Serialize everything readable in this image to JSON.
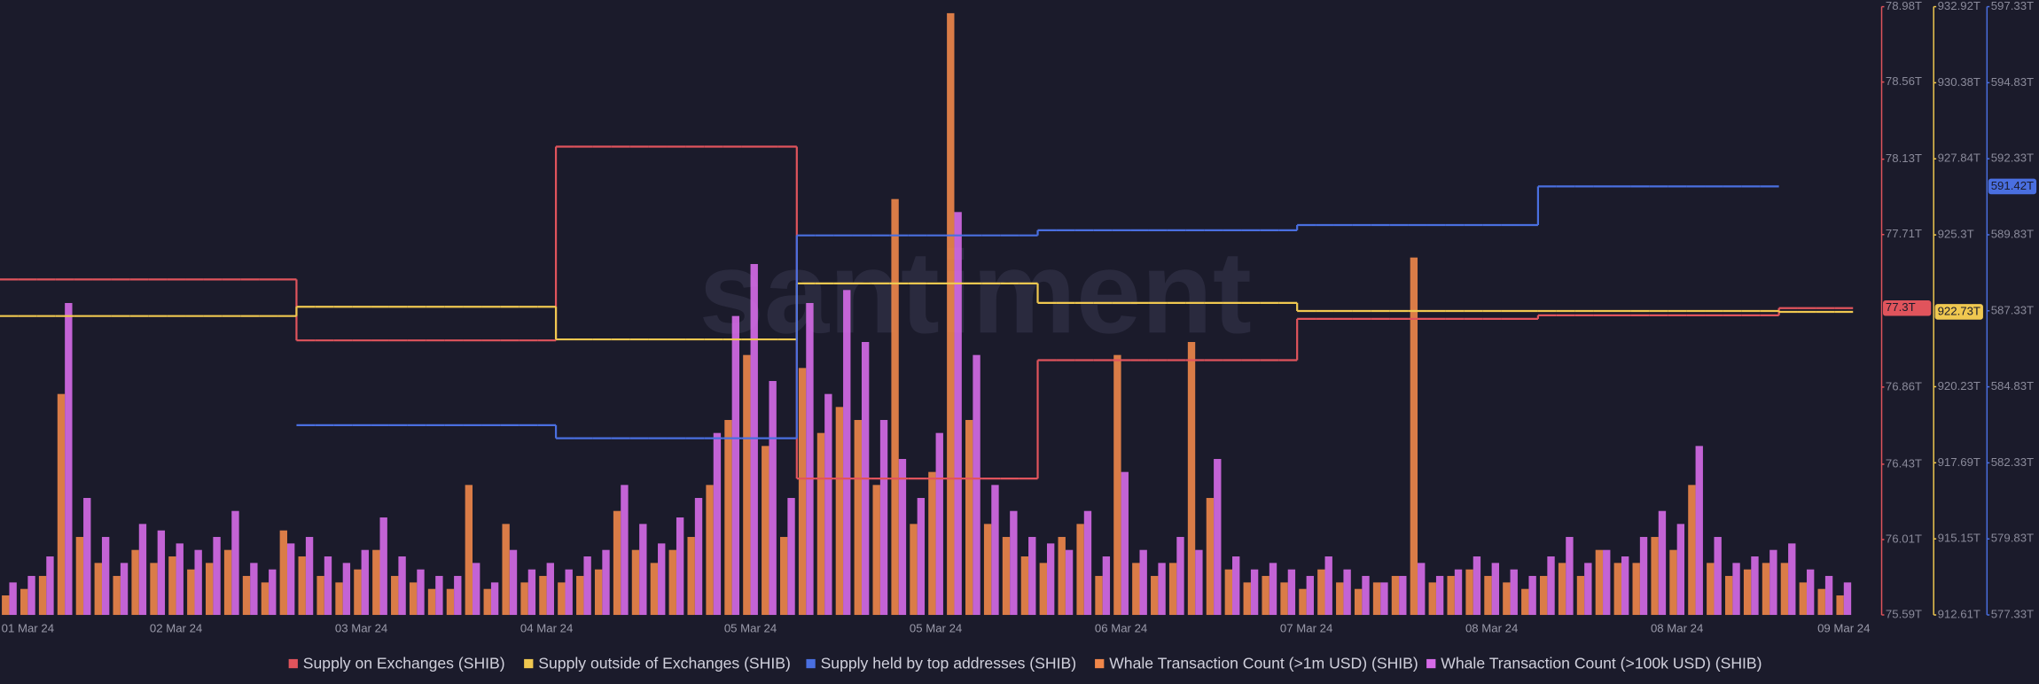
{
  "chart_data": {
    "type": "combo",
    "watermark": "santiment",
    "categories": [
      null,
      "01 Mar 24",
      null,
      null,
      null,
      null,
      null,
      null,
      null,
      "02 Mar 24",
      null,
      null,
      null,
      null,
      null,
      null,
      null,
      null,
      null,
      "03 Mar 24",
      null,
      null,
      null,
      null,
      null,
      null,
      null,
      null,
      null,
      "04 Mar 24",
      null,
      null,
      null,
      null,
      null,
      null,
      null,
      null,
      null,
      null,
      "05 Mar 24",
      null,
      null,
      null,
      null,
      null,
      null,
      null,
      null,
      null,
      "05 Mar 24",
      null,
      null,
      null,
      null,
      null,
      null,
      null,
      null,
      null,
      "06 Mar 24",
      null,
      null,
      null,
      null,
      null,
      null,
      null,
      null,
      null,
      "07 Mar 24",
      null,
      null,
      null,
      null,
      null,
      null,
      null,
      null,
      null,
      "08 Mar 24",
      null,
      null,
      null,
      null,
      null,
      null,
      null,
      null,
      null,
      "08 Mar 24",
      null,
      null,
      null,
      null,
      null,
      null,
      null,
      null,
      "09 Mar 24"
    ],
    "ylim": [
      75.59,
      78.98
    ],
    "yticks": [
      {
        "value": 78.98,
        "label": "78.98T"
      },
      {
        "value": 78.56,
        "label": "78.56T"
      },
      {
        "value": 78.13,
        "label": "78.13T"
      },
      {
        "value": 77.71,
        "label": "77.71T"
      },
      {
        "value": 76.86,
        "label": "76.86T"
      },
      {
        "value": 76.43,
        "label": "76.43T"
      },
      {
        "value": 76.01,
        "label": "76.01T"
      },
      {
        "value": 75.59,
        "label": "75.59T"
      }
    ],
    "y2lim": [
      912.61,
      932.92
    ],
    "y2ticks": [
      {
        "value": 932.92,
        "label": "932.92T"
      },
      {
        "value": 930.38,
        "label": "930.38T"
      },
      {
        "value": 927.84,
        "label": "927.84T"
      },
      {
        "value": 925.3,
        "label": "925.3T"
      },
      {
        "value": 920.23,
        "label": "920.23T"
      },
      {
        "value": 917.69,
        "label": "917.69T"
      },
      {
        "value": 915.15,
        "label": "915.15T"
      },
      {
        "value": 912.61,
        "label": "912.61T"
      }
    ],
    "y3lim": [
      577.33,
      597.33
    ],
    "y3ticks": [
      {
        "value": 597.33,
        "label": "597.33T"
      },
      {
        "value": 594.83,
        "label": "594.83T"
      },
      {
        "value": 592.33,
        "label": "592.33T"
      },
      {
        "value": 589.83,
        "label": "589.83T"
      },
      {
        "value": 587.33,
        "label": "587.33T"
      },
      {
        "value": 584.83,
        "label": "584.83T"
      },
      {
        "value": 582.33,
        "label": "582.33T"
      },
      {
        "value": 579.83,
        "label": "579.83T"
      },
      {
        "value": 577.33,
        "label": "577.33T"
      }
    ],
    "series": [
      {
        "name": "Supply on Exchanges (SHIB)",
        "color": "#e0545c",
        "type": "step",
        "axis": "y",
        "badge": {
          "value": 77.3,
          "label": "77.3T"
        },
        "values": [
          77.46,
          77.46,
          77.46,
          77.46,
          77.46,
          77.46,
          77.46,
          77.46,
          77.46,
          77.46,
          77.46,
          77.46,
          77.46,
          77.46,
          77.46,
          77.46,
          77.12,
          77.12,
          77.12,
          77.12,
          77.12,
          77.12,
          77.12,
          77.12,
          77.12,
          77.12,
          77.12,
          77.12,
          77.12,
          77.12,
          78.2,
          78.2,
          78.2,
          78.2,
          78.2,
          78.2,
          78.2,
          78.2,
          78.2,
          78.2,
          78.2,
          78.2,
          78.2,
          76.35,
          76.35,
          76.35,
          76.35,
          76.35,
          76.35,
          76.35,
          76.35,
          76.35,
          76.35,
          76.35,
          76.35,
          76.35,
          77.01,
          77.01,
          77.01,
          77.01,
          77.01,
          77.01,
          77.01,
          77.01,
          77.01,
          77.01,
          77.01,
          77.01,
          77.01,
          77.01,
          77.24,
          77.24,
          77.24,
          77.24,
          77.24,
          77.24,
          77.24,
          77.24,
          77.24,
          77.24,
          77.24,
          77.24,
          77.24,
          77.26,
          77.26,
          77.26,
          77.26,
          77.26,
          77.26,
          77.26,
          77.26,
          77.26,
          77.26,
          77.26,
          77.26,
          77.26,
          77.3,
          77.3,
          77.3,
          77.3
        ]
      },
      {
        "name": "Supply outside of Exchanges (SHIB)",
        "color": "#f0c850",
        "type": "step",
        "axis": "y2",
        "badge": {
          "value": 922.73,
          "label": "922.73T"
        },
        "values": [
          922.59,
          922.59,
          922.59,
          922.59,
          922.59,
          922.59,
          922.59,
          922.59,
          922.59,
          922.59,
          922.59,
          922.59,
          922.59,
          922.59,
          922.59,
          922.59,
          922.9,
          922.9,
          922.9,
          922.9,
          922.9,
          922.9,
          922.9,
          922.9,
          922.9,
          922.9,
          922.9,
          922.9,
          922.9,
          922.9,
          921.81,
          921.81,
          921.81,
          921.81,
          921.81,
          921.81,
          921.81,
          921.81,
          921.81,
          921.81,
          921.81,
          921.81,
          921.81,
          923.68,
          923.68,
          923.68,
          923.68,
          923.68,
          923.68,
          923.68,
          923.68,
          923.68,
          923.68,
          923.68,
          923.68,
          923.68,
          923.03,
          923.03,
          923.03,
          923.03,
          923.03,
          923.03,
          923.03,
          923.03,
          923.03,
          923.03,
          923.03,
          923.03,
          923.03,
          923.03,
          922.76,
          922.76,
          922.76,
          922.76,
          922.76,
          922.76,
          922.76,
          922.76,
          922.76,
          922.76,
          922.76,
          922.76,
          922.76,
          922.76,
          922.76,
          922.76,
          922.76,
          922.76,
          922.76,
          922.76,
          922.76,
          922.76,
          922.76,
          922.76,
          922.76,
          922.76,
          922.73,
          922.73,
          922.73,
          922.73
        ]
      },
      {
        "name": "Supply held by top addresses (SHIB)",
        "color": "#4a6fe0",
        "type": "step",
        "axis": "y3",
        "badge": {
          "value": 591.42,
          "label": "591.42T"
        },
        "values": [
          null,
          null,
          null,
          null,
          null,
          null,
          null,
          null,
          null,
          null,
          null,
          null,
          null,
          null,
          null,
          null,
          583.57,
          583.57,
          583.57,
          583.57,
          583.57,
          583.57,
          583.57,
          583.57,
          583.57,
          583.57,
          583.57,
          583.57,
          583.57,
          583.57,
          583.14,
          583.14,
          583.14,
          583.14,
          583.14,
          583.14,
          583.14,
          583.14,
          583.14,
          583.14,
          583.14,
          583.14,
          583.14,
          589.81,
          589.81,
          589.81,
          589.81,
          589.81,
          589.81,
          589.81,
          589.81,
          589.81,
          589.81,
          589.81,
          589.81,
          589.81,
          589.98,
          589.98,
          589.98,
          589.98,
          589.98,
          589.98,
          589.98,
          589.98,
          589.98,
          589.98,
          589.98,
          589.98,
          589.98,
          589.98,
          590.15,
          590.15,
          590.15,
          590.15,
          590.15,
          590.15,
          590.15,
          590.15,
          590.15,
          590.15,
          590.15,
          590.15,
          590.15,
          591.42,
          591.42,
          591.42,
          591.42,
          591.42,
          591.42,
          591.42,
          591.42,
          591.42,
          591.42,
          591.42,
          591.42,
          591.42,
          null,
          null,
          null,
          null
        ]
      },
      {
        "name": "Whale Transaction Count (>1m USD) (SHIB)",
        "color": "#f0874a",
        "type": "bar",
        "values": [
          15,
          20,
          30,
          170,
          60,
          40,
          30,
          50,
          40,
          45,
          35,
          40,
          50,
          30,
          25,
          65,
          45,
          30,
          25,
          35,
          50,
          30,
          25,
          20,
          20,
          100,
          20,
          70,
          25,
          30,
          25,
          30,
          35,
          80,
          50,
          40,
          50,
          60,
          100,
          150,
          200,
          130,
          60,
          190,
          140,
          160,
          150,
          100,
          320,
          70,
          110,
          463,
          150,
          70,
          60,
          45,
          40,
          60,
          70,
          30,
          200,
          40,
          30,
          40,
          210,
          90,
          35,
          25,
          30,
          25,
          20,
          35,
          25,
          20,
          25,
          30,
          275,
          25,
          30,
          35,
          30,
          25,
          20,
          30,
          40,
          30,
          50,
          40,
          40,
          60,
          50,
          100,
          40,
          30,
          35,
          40,
          40,
          25,
          20,
          15
        ]
      },
      {
        "name": "Whale Transaction Count (>100k USD) (SHIB)",
        "color": "#d66be8",
        "type": "bar",
        "values": [
          25,
          30,
          45,
          240,
          90,
          60,
          40,
          70,
          65,
          55,
          50,
          60,
          80,
          40,
          35,
          55,
          60,
          45,
          40,
          50,
          75,
          45,
          35,
          30,
          30,
          40,
          25,
          50,
          35,
          40,
          35,
          45,
          50,
          100,
          70,
          55,
          75,
          90,
          140,
          230,
          270,
          180,
          90,
          240,
          170,
          250,
          210,
          150,
          120,
          90,
          140,
          310,
          200,
          100,
          80,
          60,
          55,
          50,
          80,
          45,
          110,
          50,
          40,
          60,
          50,
          120,
          45,
          35,
          40,
          35,
          30,
          45,
          35,
          30,
          25,
          30,
          40,
          30,
          35,
          45,
          40,
          35,
          30,
          45,
          60,
          40,
          50,
          45,
          60,
          80,
          70,
          130,
          60,
          40,
          45,
          50,
          55,
          35,
          30,
          25
        ]
      }
    ]
  }
}
